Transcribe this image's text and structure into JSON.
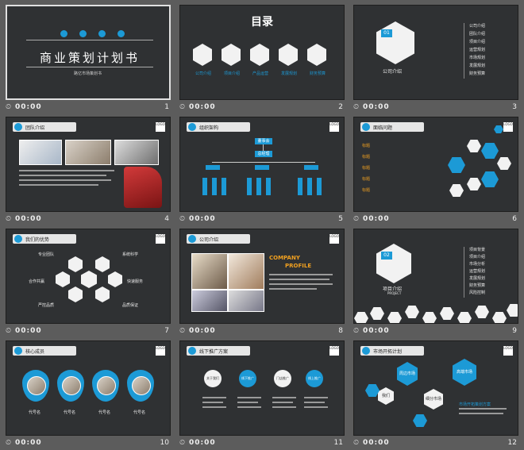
{
  "slides": [
    {
      "num": "1",
      "time": "00:00",
      "title": "商业策划计划书",
      "subtitle": "路亿市场策划书"
    },
    {
      "num": "2",
      "time": "00:00",
      "title": "目录",
      "items": [
        "公司介绍",
        "项目介绍",
        "产品运营",
        "发展规划",
        "财务预算"
      ]
    },
    {
      "num": "3",
      "time": "00:00",
      "badge": "01",
      "label": "公司介绍",
      "menu": [
        "公司介绍",
        "团队介绍",
        "项目介绍",
        "运营规划",
        "市场规划",
        "发展规划",
        "财务预算"
      ]
    },
    {
      "num": "4",
      "time": "00:00",
      "header": "团队介绍",
      "logo": "LOGO"
    },
    {
      "num": "5",
      "time": "00:00",
      "header": "组织架构",
      "logo": "LOGO",
      "org_top": "董事会",
      "org_second": "总经理"
    },
    {
      "num": "6",
      "time": "00:00",
      "header": "面临问题",
      "logo": "LOGO",
      "tags": [
        "标题",
        "标题",
        "标题",
        "标题",
        "标题"
      ],
      "hexes": [
        "标题文字",
        "标题文字",
        "标题文字",
        "标题文字"
      ]
    },
    {
      "num": "7",
      "time": "00:00",
      "header": "我们的优势",
      "logo": "LOGO",
      "skills": [
        "专业团队",
        "系统科学",
        "合作共赢",
        "快速服务",
        "严控品质",
        "品质保证"
      ]
    },
    {
      "num": "8",
      "time": "00:00",
      "header": "公司介绍",
      "logo": "LOGO",
      "title1": "COMPANY",
      "title2": "PROFILE"
    },
    {
      "num": "9",
      "time": "00:00",
      "badge": "02",
      "label": "项目介绍",
      "sublabel": "PROJECT",
      "menu": [
        "项目背景",
        "项目介绍",
        "市场分析",
        "运营规划",
        "发展规划",
        "财务预算",
        "风险控制"
      ]
    },
    {
      "num": "10",
      "time": "00:00",
      "header": "核心成员",
      "logo": "LOGO",
      "members": [
        "代号名",
        "代号名",
        "代号名",
        "代号名"
      ]
    },
    {
      "num": "11",
      "time": "00:00",
      "header": "线下推广方案",
      "logo": "LOGO",
      "bubbles": [
        "关于我们",
        "线下推广",
        "门店推广",
        "线上推广"
      ]
    },
    {
      "num": "12",
      "time": "00:00",
      "header": "市场开拓计划",
      "logo": "LOGO",
      "bubbles": [
        "周边市场",
        "高端市场",
        "我们",
        "细分市场"
      ],
      "note": "市场开拓策划方案"
    }
  ]
}
